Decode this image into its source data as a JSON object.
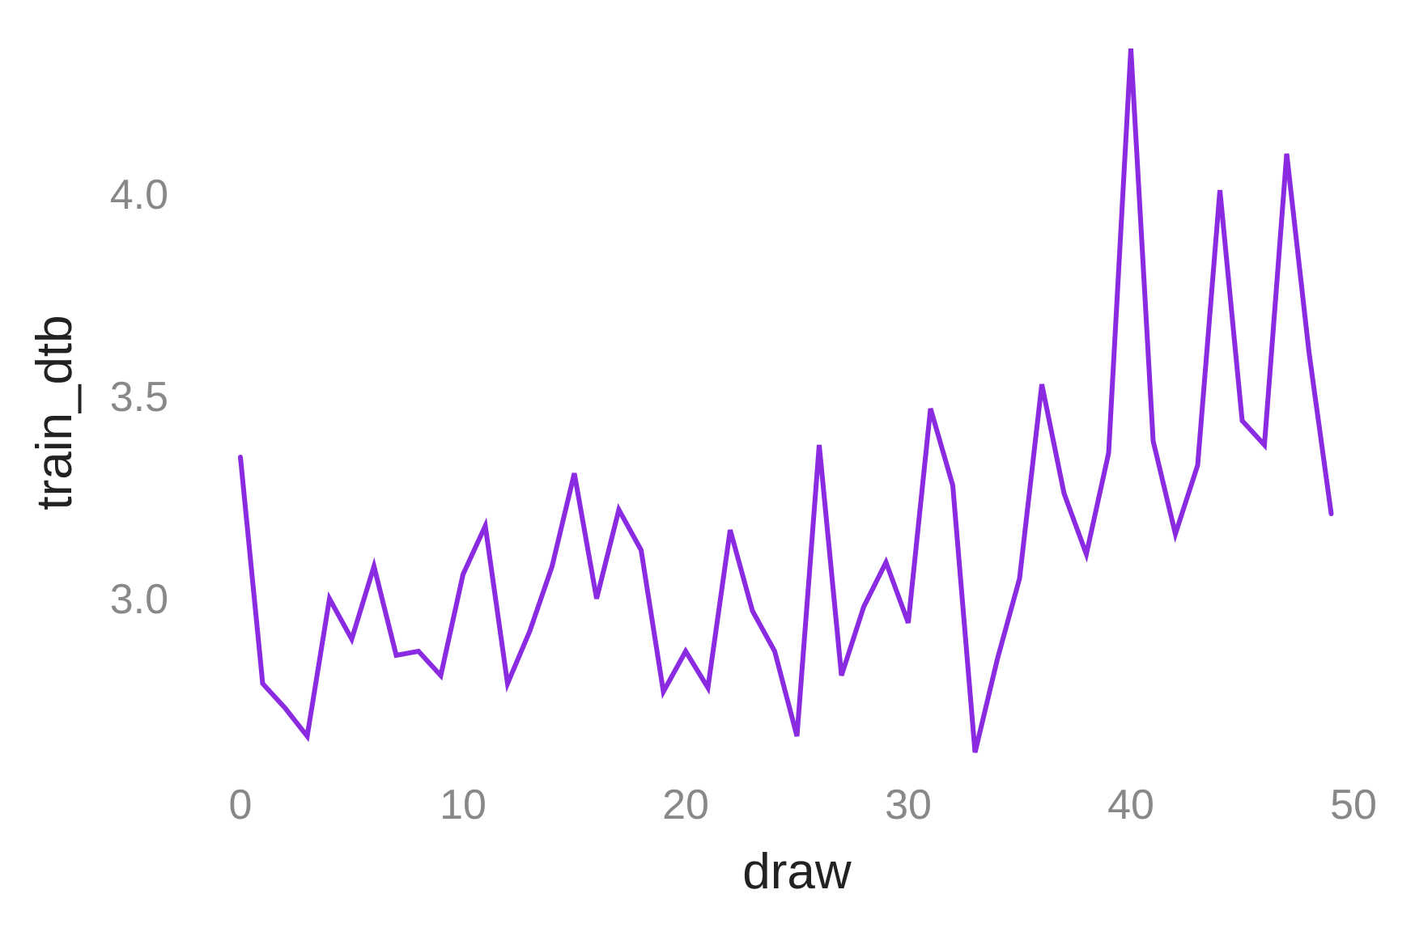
{
  "chart_data": {
    "type": "line",
    "title": "",
    "xlabel": "draw",
    "ylabel": "train_dtb",
    "xlim": [
      0,
      50
    ],
    "ylim": [
      2.6,
      4.4
    ],
    "xticks": [
      0,
      10,
      20,
      30,
      40,
      50
    ],
    "xtick_labels": [
      "0",
      "10",
      "20",
      "30",
      "40",
      "50"
    ],
    "yticks": [
      3.0,
      3.5,
      4.0
    ],
    "ytick_labels": [
      "3.0",
      "3.5",
      "4.0"
    ],
    "grid": false,
    "line_color": "#8a2be2",
    "series": [
      {
        "x": [
          0,
          1,
          2,
          3,
          4,
          5,
          6,
          7,
          8,
          9,
          10,
          11,
          12,
          13,
          14,
          15,
          16,
          17,
          18,
          19,
          20,
          21,
          22,
          23,
          24,
          25,
          26,
          27,
          28,
          29,
          30,
          31,
          32,
          33,
          34,
          35,
          36,
          37,
          38,
          39,
          40,
          41,
          42,
          43,
          44,
          45,
          46,
          47,
          48,
          49
        ],
        "values": [
          3.35,
          2.79,
          2.73,
          2.66,
          3.0,
          2.9,
          3.08,
          2.86,
          2.87,
          2.81,
          3.06,
          3.18,
          2.79,
          2.92,
          3.08,
          3.31,
          3.0,
          3.22,
          3.12,
          2.77,
          2.87,
          2.78,
          3.17,
          2.97,
          2.87,
          2.66,
          3.38,
          2.81,
          2.98,
          3.09,
          2.94,
          3.47,
          3.28,
          2.62,
          2.85,
          3.05,
          3.53,
          3.26,
          3.11,
          3.36,
          4.36,
          3.39,
          3.16,
          3.33,
          4.01,
          3.44,
          3.38,
          4.1,
          3.61,
          3.21
        ]
      }
    ]
  }
}
